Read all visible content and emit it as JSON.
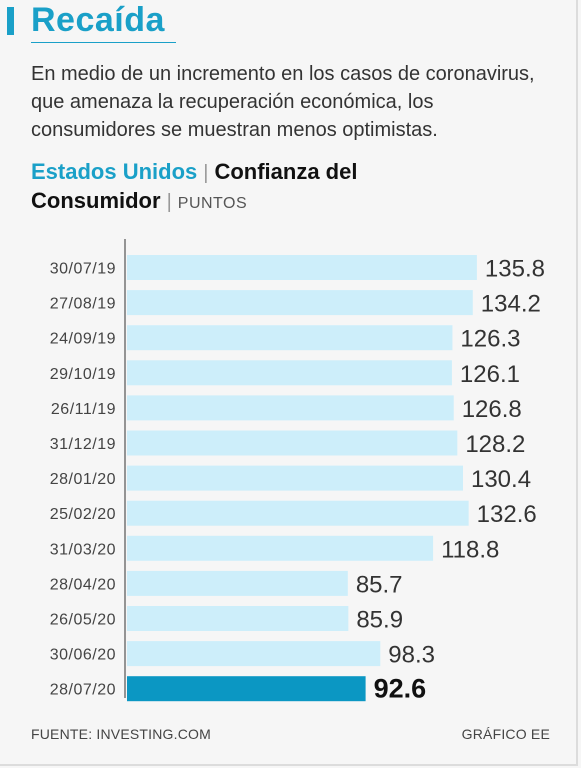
{
  "header": {
    "title": "Recaída",
    "dek": "En medio de un incremento en los casos de coronavirus, que amenaza la recuperación económica, los consumidores se muestran menos optimistas."
  },
  "subtitle": {
    "country": "Estados Unidos",
    "measure_line1": "Confianza del",
    "measure_line2": "Consumidor",
    "units": "PUNTOS"
  },
  "footer": {
    "source": "FUENTE: INVESTING.COM",
    "credit": "GRÁFICO EE"
  },
  "colors": {
    "accent": "#1aa0c8",
    "bar": "#cdeefa",
    "highlight_bar": "#0b97c3"
  },
  "chart_data": {
    "type": "bar",
    "orientation": "horizontal",
    "categories": [
      "30/07/19",
      "27/08/19",
      "24/09/19",
      "29/10/19",
      "26/11/19",
      "31/12/19",
      "28/01/20",
      "25/02/20",
      "31/03/20",
      "28/04/20",
      "26/05/20",
      "30/06/20",
      "28/07/20"
    ],
    "values": [
      135.8,
      134.2,
      126.3,
      126.1,
      126.8,
      128.2,
      130.4,
      132.6,
      118.8,
      85.7,
      85.9,
      98.3,
      92.6
    ],
    "value_labels": [
      "135.8",
      "134.2",
      "126.3",
      "126.1",
      "126.8",
      "128.2",
      "130.4",
      "132.6",
      "118.8",
      "85.7",
      "85.9",
      "98.3",
      "92.6"
    ],
    "highlight_index": 12,
    "xlim": [
      0,
      137
    ],
    "title": "",
    "xlabel": "",
    "ylabel": "",
    "grid": false
  }
}
